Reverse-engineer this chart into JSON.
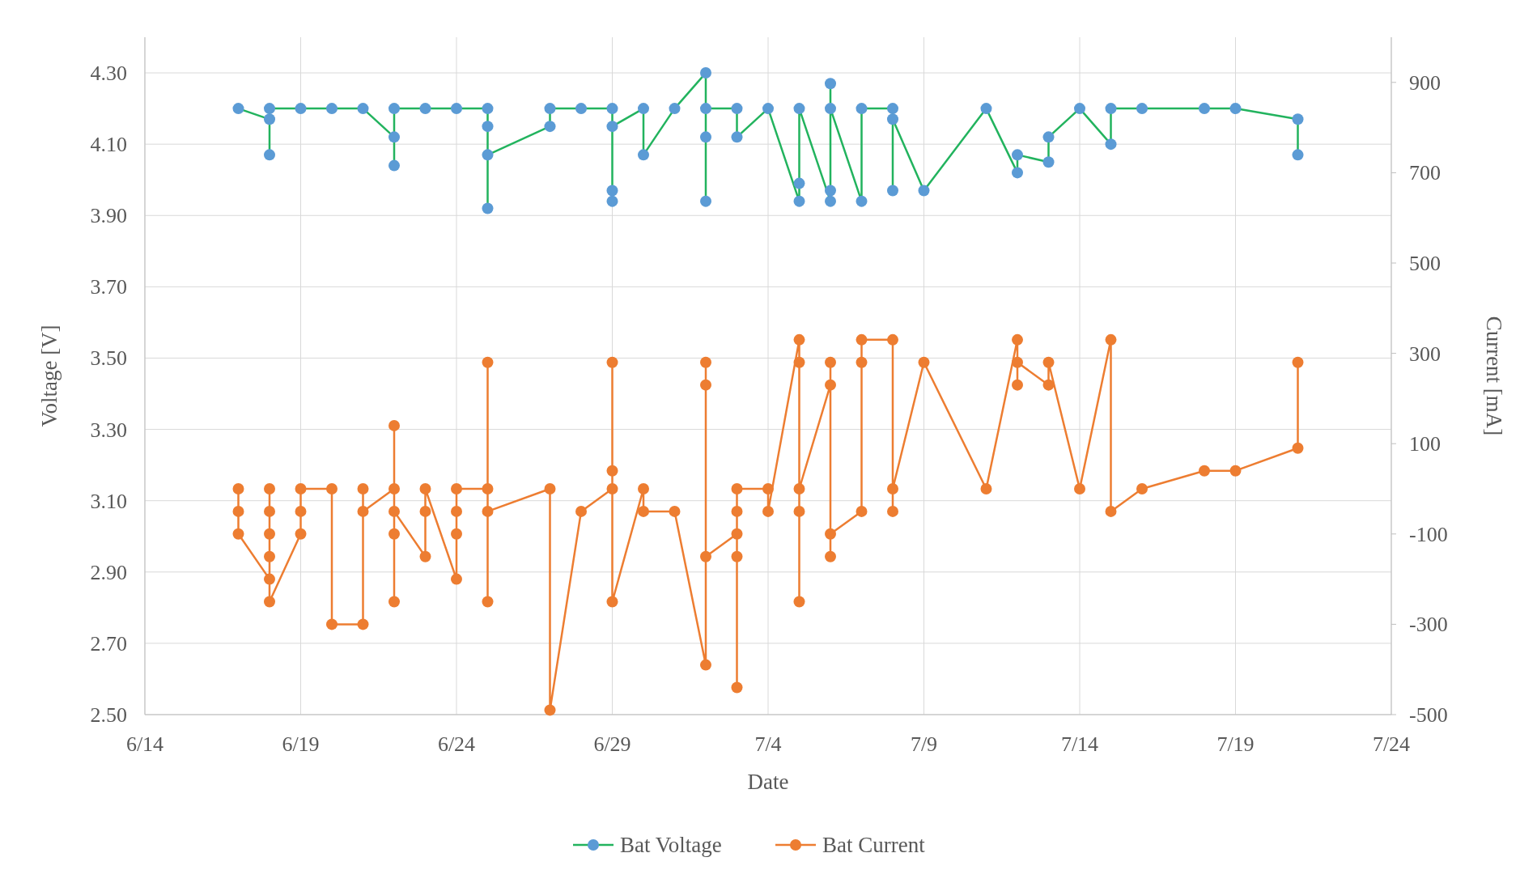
{
  "chart_data": {
    "type": "line",
    "xlabel": "Date",
    "ylabel": "Voltage [V]",
    "y2label": "Current [mA]",
    "xlim": [
      "--06-14",
      "--07-24"
    ],
    "xticks": [
      {
        "value": "--06-14",
        "label": "6/14"
      },
      {
        "value": "--06-19",
        "label": "6/19"
      },
      {
        "value": "--06-24",
        "label": "6/24"
      },
      {
        "value": "--06-29",
        "label": "6/29"
      },
      {
        "value": "--07-04",
        "label": "7/4"
      },
      {
        "value": "--07-09",
        "label": "7/9"
      },
      {
        "value": "--07-14",
        "label": "7/14"
      },
      {
        "value": "--07-19",
        "label": "7/19"
      },
      {
        "value": "--07-24",
        "label": "7/24"
      }
    ],
    "ylim": [
      2.5,
      4.4
    ],
    "yticks": [
      {
        "value": 2.5,
        "label": "2.50"
      },
      {
        "value": 2.7,
        "label": "2.70"
      },
      {
        "value": 2.9,
        "label": "2.90"
      },
      {
        "value": 3.1,
        "label": "3.10"
      },
      {
        "value": 3.3,
        "label": "3.30"
      },
      {
        "value": 3.5,
        "label": "3.50"
      },
      {
        "value": 3.7,
        "label": "3.70"
      },
      {
        "value": 3.9,
        "label": "3.90"
      },
      {
        "value": 4.1,
        "label": "4.10"
      },
      {
        "value": 4.3,
        "label": "4.30"
      }
    ],
    "y2lim": [
      -500,
      1000
    ],
    "y2ticks": [
      -500,
      -300,
      -100,
      100,
      300,
      500,
      700,
      900
    ],
    "grid": true,
    "legend": "bottom",
    "marker": "circle",
    "line_style": "solid",
    "series": [
      {
        "name": "Bat Voltage",
        "color": "#22b35e",
        "colors": [
          "#5b9bd5",
          "#5b9bd5",
          "#5b9bd5",
          "#5b9bd5",
          "#5b9bd5",
          "#5b9bd5",
          "#5b9bd5",
          "#5b9bd5",
          "#5b9bd5",
          "#5b9bd5",
          "#5b9bd5",
          "#5b9bd5",
          "#5b9bd5",
          "#5b9bd5",
          "#5b9bd5",
          "#5b9bd5",
          "#5b9bd5",
          "#5b9bd5",
          "#5b9bd5",
          "#5b9bd5",
          "#5b9bd5",
          "#5b9bd5",
          "#5b9bd5",
          "#5b9bd5",
          "#5b9bd5",
          "#5b9bd5",
          "#5b9bd5",
          "#5b9bd5",
          "#5b9bd5",
          "#5b9bd5",
          "#5b9bd5",
          "#5b9bd5",
          "#5b9bd5",
          "#5b9bd5",
          "#5b9bd5",
          "#5b9bd5",
          "#5b9bd5",
          "#5b9bd5",
          "#5b9bd5",
          "#5b9bd5",
          "#5b9bd5",
          "#5b9bd5",
          "#5b9bd5",
          "#5b9bd5",
          "#5b9bd5",
          "#5b9bd5",
          "#5b9bd5",
          "#5b9bd5",
          "#5b9bd5",
          "#5b9bd5",
          "#5b9bd5",
          "#5b9bd5",
          "#5b9bd5",
          "#5b9bd5",
          "#5b9bd5",
          "#5b9bd5",
          "#5b9bd5",
          "#5b9bd5",
          "#5b9bd5"
        ],
        "x": [
          "--06-17",
          "--06-18",
          "--06-18",
          "--06-18",
          "--06-19",
          "--06-20",
          "--06-21",
          "--06-22",
          "--06-22",
          "--06-22",
          "--06-23",
          "--06-24",
          "--06-25",
          "--06-25",
          "--06-25",
          "--06-25",
          "--06-27",
          "--06-27",
          "--06-28",
          "--06-29",
          "--06-29",
          "--06-29",
          "--06-29",
          "--06-30",
          "--06-30",
          "--07-01",
          "--07-02",
          "--07-02",
          "--07-02",
          "--07-02",
          "--07-03",
          "--07-03",
          "--07-04",
          "--07-05",
          "--07-05",
          "--07-05",
          "--07-06",
          "--07-06",
          "--07-06",
          "--07-06",
          "--07-07",
          "--07-07",
          "--07-08",
          "--07-08",
          "--07-08",
          "--07-09",
          "--07-11",
          "--07-12",
          "--07-12",
          "--07-13",
          "--07-13",
          "--07-14",
          "--07-15",
          "--07-15",
          "--07-16",
          "--07-18",
          "--07-19",
          "--07-21",
          "--07-21"
        ],
        "values": [
          4.2,
          4.17,
          4.07,
          4.2,
          4.2,
          4.2,
          4.2,
          4.12,
          4.04,
          4.2,
          4.2,
          4.2,
          4.2,
          3.92,
          4.15,
          4.07,
          4.15,
          4.2,
          4.2,
          4.2,
          3.94,
          3.97,
          4.15,
          4.2,
          4.07,
          4.2,
          4.3,
          3.94,
          4.12,
          4.2,
          4.2,
          4.12,
          4.2,
          3.94,
          3.99,
          4.2,
          3.94,
          3.97,
          4.27,
          4.2,
          3.94,
          4.2,
          4.2,
          3.97,
          4.17,
          3.97,
          4.2,
          4.02,
          4.07,
          4.05,
          4.12,
          4.2,
          4.1,
          4.2,
          4.2,
          4.2,
          4.2,
          4.17,
          4.07
        ]
      },
      {
        "name": "Bat Current",
        "color": "#ed7d31",
        "axis": "y2",
        "x": [
          "--06-17",
          "--06-17",
          "--06-17",
          "--06-18",
          "--06-18",
          "--06-18",
          "--06-18",
          "--06-18",
          "--06-18",
          "--06-19",
          "--06-19",
          "--06-19",
          "--06-20",
          "--06-20",
          "--06-21",
          "--06-21",
          "--06-21",
          "--06-22",
          "--06-22",
          "--06-22",
          "--06-22",
          "--06-22",
          "--06-23",
          "--06-23",
          "--06-23",
          "--06-24",
          "--06-24",
          "--06-24",
          "--06-24",
          "--06-25",
          "--06-25",
          "--06-25",
          "--06-25",
          "--06-27",
          "--06-27",
          "--06-28",
          "--06-29",
          "--06-29",
          "--06-29",
          "--06-29",
          "--06-30",
          "--06-30",
          "--07-01",
          "--07-02",
          "--07-02",
          "--07-02",
          "--07-02",
          "--07-03",
          "--07-03",
          "--07-03",
          "--07-03",
          "--07-03",
          "--07-04",
          "--07-04",
          "--07-05",
          "--07-05",
          "--07-05",
          "--07-05",
          "--07-05",
          "--07-06",
          "--07-06",
          "--07-06",
          "--07-06",
          "--07-07",
          "--07-07",
          "--07-07",
          "--07-08",
          "--07-08",
          "--07-08",
          "--07-09",
          "--07-11",
          "--07-12",
          "--07-12",
          "--07-12",
          "--07-13",
          "--07-13",
          "--07-14",
          "--07-15",
          "--07-15",
          "--07-16",
          "--07-18",
          "--07-19",
          "--07-21",
          "--07-21"
        ],
        "values": [
          0,
          -50,
          -100,
          -200,
          0,
          -50,
          -100,
          -150,
          -250,
          -100,
          -50,
          0,
          0,
          -300,
          -300,
          0,
          -50,
          0,
          140,
          -250,
          -100,
          -50,
          -150,
          -50,
          0,
          -200,
          -100,
          -50,
          0,
          0,
          280,
          -250,
          -50,
          0,
          -490,
          -50,
          0,
          40,
          280,
          -250,
          0,
          -50,
          -50,
          -390,
          280,
          230,
          -150,
          -100,
          -440,
          -150,
          -50,
          0,
          0,
          -50,
          330,
          280,
          -250,
          -50,
          0,
          230,
          280,
          -150,
          -100,
          -50,
          280,
          330,
          330,
          -50,
          0,
          280,
          0,
          330,
          230,
          280,
          230,
          280,
          0,
          330,
          -50,
          0,
          40,
          40,
          90,
          280
        ]
      }
    ]
  }
}
